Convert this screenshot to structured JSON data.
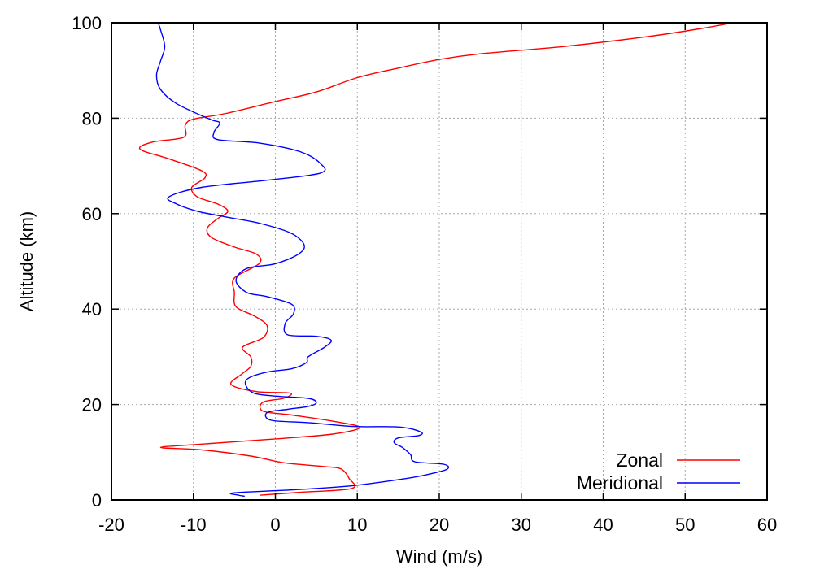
{
  "chart_data": {
    "type": "line",
    "xlabel": "Wind (m/s)",
    "ylabel": "Altitude (km)",
    "xlim": [
      -20,
      60
    ],
    "ylim": [
      0,
      100
    ],
    "x_ticks": [
      "-20",
      "-10",
      "0",
      "10",
      "20",
      "30",
      "40",
      "50",
      "60"
    ],
    "y_ticks": [
      "0",
      "20",
      "40",
      "60",
      "80",
      "100"
    ],
    "grid": true,
    "legend_position": "bottom-right",
    "series": [
      {
        "name": "Zonal",
        "color": "#ff0000",
        "points": [
          [
            -1.8,
            1
          ],
          [
            3,
            1.6
          ],
          [
            9.3,
            2.4
          ],
          [
            9,
            4.5
          ],
          [
            8,
            6.5
          ],
          [
            6,
            7
          ],
          [
            1,
            7.8
          ],
          [
            -3,
            9.2
          ],
          [
            -9,
            10.5
          ],
          [
            -14,
            11
          ],
          [
            -9,
            11.7
          ],
          [
            0,
            12.8
          ],
          [
            7,
            13.8
          ],
          [
            10.3,
            15.2
          ],
          [
            7,
            16.5
          ],
          [
            2,
            17.8
          ],
          [
            -1.5,
            18.6
          ],
          [
            -1.5,
            20.5
          ],
          [
            1,
            21.3
          ],
          [
            1.8,
            22.4
          ],
          [
            -2.2,
            22.7
          ],
          [
            -5.4,
            24.2
          ],
          [
            -4,
            26.5
          ],
          [
            -3,
            28
          ],
          [
            -3,
            30
          ],
          [
            -4,
            32
          ],
          [
            -1.5,
            34
          ],
          [
            -1,
            36.5
          ],
          [
            -2.5,
            38.5
          ],
          [
            -4.8,
            40.5
          ],
          [
            -5,
            43.5
          ],
          [
            -5,
            46.5
          ],
          [
            -2,
            49.5
          ],
          [
            -2.3,
            51.5
          ],
          [
            -5,
            53
          ],
          [
            -7.8,
            55
          ],
          [
            -8.3,
            57
          ],
          [
            -7,
            59
          ],
          [
            -5.8,
            60.5
          ],
          [
            -7,
            62
          ],
          [
            -9.5,
            63.5
          ],
          [
            -10.2,
            65.5
          ],
          [
            -8.6,
            67.5
          ],
          [
            -9,
            69
          ],
          [
            -13,
            71.5
          ],
          [
            -16.5,
            73.5
          ],
          [
            -15,
            75
          ],
          [
            -11.2,
            76
          ],
          [
            -11,
            78.5
          ],
          [
            -10,
            79.8
          ],
          [
            -6,
            81
          ],
          [
            0,
            83.5
          ],
          [
            5,
            85.5
          ],
          [
            10,
            88.5
          ],
          [
            15,
            90.5
          ],
          [
            20,
            92.3
          ],
          [
            25,
            93.5
          ],
          [
            35,
            95
          ],
          [
            45,
            97
          ],
          [
            52,
            98.8
          ],
          [
            55.8,
            100
          ]
        ]
      },
      {
        "name": "Meridional",
        "color": "#0000ff",
        "points": [
          [
            -3.8,
            0.8
          ],
          [
            -4.5,
            1
          ],
          [
            -5,
            1.5
          ],
          [
            3,
            2.2
          ],
          [
            9.5,
            3
          ],
          [
            16,
            4.5
          ],
          [
            19,
            5.5
          ],
          [
            21,
            6.5
          ],
          [
            20.5,
            7.5
          ],
          [
            17,
            8
          ],
          [
            16.5,
            9.5
          ],
          [
            15.5,
            11
          ],
          [
            14.5,
            12
          ],
          [
            15,
            13
          ],
          [
            17.5,
            13.5
          ],
          [
            17.7,
            14.3
          ],
          [
            15,
            15.3
          ],
          [
            9.5,
            15.4
          ],
          [
            4,
            16.2
          ],
          [
            -0.5,
            16.7
          ],
          [
            -1,
            18.3
          ],
          [
            1.5,
            19
          ],
          [
            4,
            19.6
          ],
          [
            5,
            20.4
          ],
          [
            4,
            21.3
          ],
          [
            0.5,
            21.7
          ],
          [
            -2.5,
            22.3
          ],
          [
            -3.6,
            24
          ],
          [
            -3.3,
            25.5
          ],
          [
            -1,
            26.8
          ],
          [
            2,
            27.5
          ],
          [
            3.8,
            28.8
          ],
          [
            4,
            30
          ],
          [
            6,
            32
          ],
          [
            6.8,
            33.5
          ],
          [
            5,
            34.3
          ],
          [
            1.5,
            34.6
          ],
          [
            1.2,
            37
          ],
          [
            2.2,
            39
          ],
          [
            2,
            41
          ],
          [
            -1,
            42.6
          ],
          [
            -3.5,
            43.5
          ],
          [
            -4.8,
            46
          ],
          [
            -3.5,
            48.5
          ],
          [
            0,
            49.5
          ],
          [
            2.8,
            51.5
          ],
          [
            3.5,
            53.5
          ],
          [
            1.8,
            56
          ],
          [
            -2,
            58
          ],
          [
            -6,
            59.3
          ],
          [
            -9.5,
            60.5
          ],
          [
            -12,
            62
          ],
          [
            -13,
            63.5
          ],
          [
            -9,
            65.5
          ],
          [
            -1,
            67
          ],
          [
            5.5,
            68.5
          ],
          [
            5.5,
            70.5
          ],
          [
            3,
            73
          ],
          [
            -2,
            74.8
          ],
          [
            -7,
            75.5
          ],
          [
            -7.5,
            77
          ],
          [
            -6.8,
            79
          ],
          [
            -8,
            79.8
          ],
          [
            -12,
            83
          ],
          [
            -14,
            86
          ],
          [
            -14.5,
            89
          ],
          [
            -14,
            92
          ],
          [
            -13.5,
            95
          ],
          [
            -14,
            98.5
          ],
          [
            -14.3,
            100
          ]
        ]
      }
    ]
  }
}
